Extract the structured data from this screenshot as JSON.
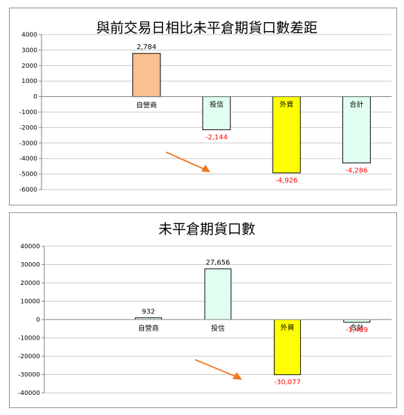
{
  "chart_data": [
    {
      "type": "bar",
      "title": "與前交易日相比未平倉期貨口數差距",
      "categories": [
        "自營商",
        "投信",
        "外資",
        "合計"
      ],
      "values": [
        2784,
        -2144,
        -4926,
        -4286
      ],
      "data_labels": [
        "2,784",
        "-2,144",
        "-4,926",
        "-4,286"
      ],
      "bar_colors": [
        "#FAC090",
        "#E0FFF0",
        "#FFFF00",
        "#E0FFF0"
      ],
      "ylim": [
        -6000,
        4000
      ],
      "yticks": [
        "4000",
        "3000",
        "2000",
        "1000",
        "0",
        "-1000",
        "-2000",
        "-3000",
        "-4000",
        "-5000",
        "-6000"
      ],
      "grid": true,
      "negative_label_color": "#FF0000",
      "annotation": "orange-arrow"
    },
    {
      "type": "bar",
      "title": "未平倉期貨口數",
      "categories": [
        "自營商",
        "投信",
        "外資",
        "合計"
      ],
      "values": [
        932,
        27656,
        -30077,
        -1489
      ],
      "data_labels": [
        "932",
        "27,656",
        "-30,077",
        "-1,489"
      ],
      "bar_colors": [
        "#E0FFF0",
        "#E0FFF0",
        "#FFFF00",
        "#E0FFF0"
      ],
      "ylim": [
        -40000,
        40000
      ],
      "yticks": [
        "40000",
        "30000",
        "20000",
        "10000",
        "0",
        "-10000",
        "-20000",
        "-30000",
        "-40000"
      ],
      "grid": true,
      "negative_label_color": "#FF0000",
      "annotation": "orange-arrow"
    }
  ]
}
